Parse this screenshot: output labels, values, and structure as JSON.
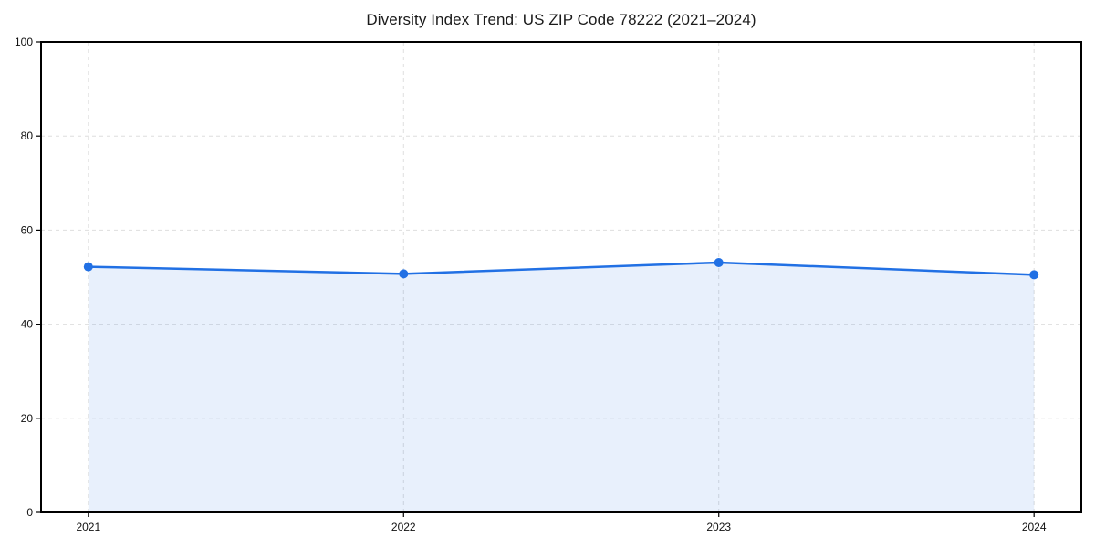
{
  "chart_data": {
    "type": "area",
    "title": "Diversity Index Trend: US ZIP Code 78222 (2021–2024)",
    "xlabel": "",
    "ylabel": "",
    "x": [
      2021,
      2022,
      2023,
      2024
    ],
    "series": [
      {
        "name": "Diversity Index",
        "values": [
          52.2,
          50.7,
          53.1,
          50.5
        ]
      }
    ],
    "xticks": [
      2021,
      2022,
      2023,
      2024
    ],
    "yticks": [
      0,
      20,
      40,
      60,
      80,
      100
    ],
    "xlim": [
      2020.85,
      2024.15
    ],
    "ylim": [
      0,
      100
    ],
    "grid": "dashed",
    "legend_position": "none",
    "colors": {
      "line": "#2170e4",
      "marker": "#2170e4",
      "area_fill": "rgba(33,112,228,0.10)",
      "gridline": "#dedede",
      "spine": "#000000",
      "tick_label": "#111111",
      "title": "#1a1a1a",
      "background": "#ffffff"
    }
  }
}
